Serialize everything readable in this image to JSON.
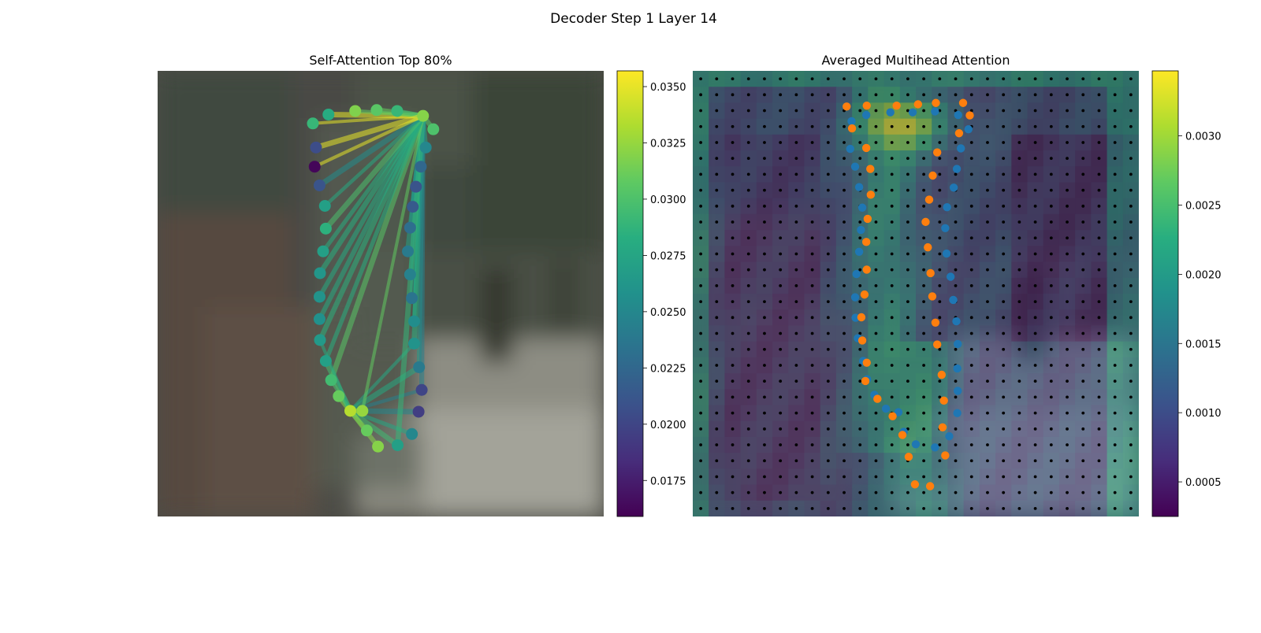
{
  "figure": {
    "title": "Decoder Step 1 Layer 14"
  },
  "chart_data": [
    {
      "type": "scatter",
      "title": "Self-Attention Top 80%",
      "background": "blurred grayscale-green photo of a person standing on a street",
      "colormap": "viridis",
      "colorbar": {
        "range": [
          0.0159,
          0.0357
        ],
        "ticks": [
          "0.0175",
          "0.0200",
          "0.0225",
          "0.0250",
          "0.0275",
          "0.0300",
          "0.0325",
          "0.0350"
        ]
      },
      "hubs": [
        {
          "x": 0.595,
          "y": 0.101,
          "value": 0.032,
          "links_to": "most points"
        },
        {
          "x": 0.432,
          "y": 0.763,
          "value": 0.0335,
          "links_to": "lower points"
        }
      ],
      "points": [
        {
          "x": 0.348,
          "y": 0.118,
          "value": 0.029
        },
        {
          "x": 0.383,
          "y": 0.098,
          "value": 0.028
        },
        {
          "x": 0.443,
          "y": 0.09,
          "value": 0.0318
        },
        {
          "x": 0.491,
          "y": 0.088,
          "value": 0.0305
        },
        {
          "x": 0.537,
          "y": 0.09,
          "value": 0.029
        },
        {
          "x": 0.595,
          "y": 0.101,
          "value": 0.032
        },
        {
          "x": 0.618,
          "y": 0.131,
          "value": 0.03
        },
        {
          "x": 0.601,
          "y": 0.172,
          "value": 0.025
        },
        {
          "x": 0.59,
          "y": 0.215,
          "value": 0.0225
        },
        {
          "x": 0.579,
          "y": 0.26,
          "value": 0.021
        },
        {
          "x": 0.572,
          "y": 0.305,
          "value": 0.0215
        },
        {
          "x": 0.566,
          "y": 0.352,
          "value": 0.023
        },
        {
          "x": 0.561,
          "y": 0.405,
          "value": 0.024
        },
        {
          "x": 0.566,
          "y": 0.457,
          "value": 0.0245
        },
        {
          "x": 0.57,
          "y": 0.51,
          "value": 0.0235
        },
        {
          "x": 0.575,
          "y": 0.562,
          "value": 0.0255
        },
        {
          "x": 0.575,
          "y": 0.612,
          "value": 0.026
        },
        {
          "x": 0.586,
          "y": 0.665,
          "value": 0.024
        },
        {
          "x": 0.592,
          "y": 0.716,
          "value": 0.02
        },
        {
          "x": 0.585,
          "y": 0.765,
          "value": 0.0195
        },
        {
          "x": 0.57,
          "y": 0.815,
          "value": 0.025
        },
        {
          "x": 0.538,
          "y": 0.84,
          "value": 0.027
        },
        {
          "x": 0.494,
          "y": 0.843,
          "value": 0.032
        },
        {
          "x": 0.469,
          "y": 0.807,
          "value": 0.031
        },
        {
          "x": 0.459,
          "y": 0.763,
          "value": 0.0325
        },
        {
          "x": 0.432,
          "y": 0.763,
          "value": 0.0335
        },
        {
          "x": 0.406,
          "y": 0.73,
          "value": 0.031
        },
        {
          "x": 0.389,
          "y": 0.694,
          "value": 0.0295
        },
        {
          "x": 0.377,
          "y": 0.651,
          "value": 0.027
        },
        {
          "x": 0.364,
          "y": 0.604,
          "value": 0.0265
        },
        {
          "x": 0.363,
          "y": 0.557,
          "value": 0.0258
        },
        {
          "x": 0.363,
          "y": 0.507,
          "value": 0.026
        },
        {
          "x": 0.364,
          "y": 0.454,
          "value": 0.0262
        },
        {
          "x": 0.371,
          "y": 0.405,
          "value": 0.027
        },
        {
          "x": 0.377,
          "y": 0.354,
          "value": 0.0285
        },
        {
          "x": 0.375,
          "y": 0.303,
          "value": 0.027
        },
        {
          "x": 0.363,
          "y": 0.257,
          "value": 0.021
        },
        {
          "x": 0.352,
          "y": 0.215,
          "value": 0.0162
        },
        {
          "x": 0.355,
          "y": 0.172,
          "value": 0.0205
        }
      ]
    },
    {
      "type": "heatmap",
      "title": "Averaged Multihead Attention",
      "background": "same blurred photo overlaid with a 28x28 attention heatmap and a black reference-point grid",
      "colormap": "viridis",
      "grid": 28,
      "colorbar": {
        "range": [
          0.00025,
          0.00347
        ],
        "ticks": [
          "0.0005",
          "0.0010",
          "0.0015",
          "0.0020",
          "0.0025",
          "0.0030"
        ]
      },
      "series": [
        {
          "color": "#ff7f0e",
          "points": [
            [
              0.345,
              0.08
            ],
            [
              0.39,
              0.078
            ],
            [
              0.457,
              0.078
            ],
            [
              0.505,
              0.075
            ],
            [
              0.545,
              0.072
            ],
            [
              0.606,
              0.072
            ],
            [
              0.621,
              0.1
            ],
            [
              0.597,
              0.14
            ],
            [
              0.548,
              0.183
            ],
            [
              0.538,
              0.235
            ],
            [
              0.53,
              0.289
            ],
            [
              0.522,
              0.339
            ],
            [
              0.527,
              0.396
            ],
            [
              0.533,
              0.454
            ],
            [
              0.537,
              0.506
            ],
            [
              0.544,
              0.565
            ],
            [
              0.548,
              0.614
            ],
            [
              0.558,
              0.682
            ],
            [
              0.563,
              0.74
            ],
            [
              0.56,
              0.8
            ],
            [
              0.566,
              0.863
            ],
            [
              0.532,
              0.932
            ],
            [
              0.498,
              0.928
            ],
            [
              0.484,
              0.866
            ],
            [
              0.47,
              0.817
            ],
            [
              0.448,
              0.775
            ],
            [
              0.414,
              0.736
            ],
            [
              0.387,
              0.696
            ],
            [
              0.39,
              0.655
            ],
            [
              0.38,
              0.605
            ],
            [
              0.378,
              0.553
            ],
            [
              0.385,
              0.502
            ],
            [
              0.39,
              0.446
            ],
            [
              0.389,
              0.384
            ],
            [
              0.392,
              0.332
            ],
            [
              0.399,
              0.278
            ],
            [
              0.398,
              0.22
            ],
            [
              0.389,
              0.173
            ],
            [
              0.357,
              0.129
            ]
          ]
        },
        {
          "color": "#1f77b4",
          "points": [
            [
              0.356,
              0.113
            ],
            [
              0.389,
              0.099
            ],
            [
              0.443,
              0.093
            ],
            [
              0.493,
              0.093
            ],
            [
              0.543,
              0.091
            ],
            [
              0.595,
              0.099
            ],
            [
              0.618,
              0.131
            ],
            [
              0.601,
              0.174
            ],
            [
              0.592,
              0.22
            ],
            [
              0.585,
              0.262
            ],
            [
              0.57,
              0.306
            ],
            [
              0.566,
              0.353
            ],
            [
              0.569,
              0.41
            ],
            [
              0.578,
              0.462
            ],
            [
              0.584,
              0.514
            ],
            [
              0.591,
              0.562
            ],
            [
              0.594,
              0.613
            ],
            [
              0.593,
              0.668
            ],
            [
              0.594,
              0.718
            ],
            [
              0.593,
              0.768
            ],
            [
              0.575,
              0.82
            ],
            [
              0.543,
              0.845
            ],
            [
              0.5,
              0.838
            ],
            [
              0.473,
              0.81
            ],
            [
              0.461,
              0.766
            ],
            [
              0.433,
              0.758
            ],
            [
              0.407,
              0.727
            ],
            [
              0.391,
              0.692
            ],
            [
              0.382,
              0.651
            ],
            [
              0.37,
              0.6
            ],
            [
              0.365,
              0.554
            ],
            [
              0.364,
              0.508
            ],
            [
              0.367,
              0.456
            ],
            [
              0.373,
              0.406
            ],
            [
              0.377,
              0.357
            ],
            [
              0.38,
              0.307
            ],
            [
              0.373,
              0.261
            ],
            [
              0.364,
              0.215
            ],
            [
              0.353,
              0.175
            ]
          ]
        }
      ]
    }
  ]
}
